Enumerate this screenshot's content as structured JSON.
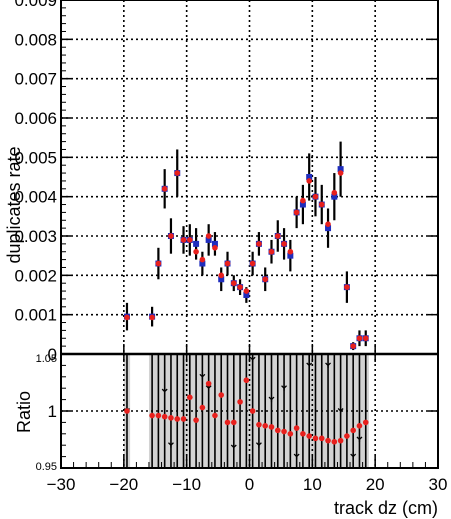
{
  "chart_data": [
    {
      "panel": "upper",
      "type": "scatter",
      "title": "",
      "xlabel": "",
      "ylabel": "duplicates rate",
      "xlim": [
        -30,
        30
      ],
      "ylim": [
        0,
        0.009
      ],
      "grid": true,
      "yticks": [
        "0",
        "0.001",
        "0.002",
        "0.003",
        "0.004",
        "0.005",
        "0.006",
        "0.007",
        "0.008",
        "0.009"
      ],
      "series": [
        {
          "marker": "blue-square",
          "color": "#1f2dbd",
          "points": [
            {
              "x": -19.5,
              "y": 0.00095,
              "err": 0.00035
            },
            {
              "x": -15.5,
              "y": 0.00095,
              "err": 0.00025
            },
            {
              "x": -14.5,
              "y": 0.0023,
              "err": 0.0004
            },
            {
              "x": -13.5,
              "y": 0.0042,
              "err": 0.0005
            },
            {
              "x": -12.5,
              "y": 0.003,
              "err": 0.00045
            },
            {
              "x": -11.5,
              "y": 0.0046,
              "err": 0.0006
            },
            {
              "x": -10.5,
              "y": 0.0029,
              "err": 0.00035
            },
            {
              "x": -9.5,
              "y": 0.0029,
              "err": 0.0004
            },
            {
              "x": -8.5,
              "y": 0.0028,
              "err": 0.0004
            },
            {
              "x": -7.5,
              "y": 0.0023,
              "err": 0.0003
            },
            {
              "x": -6.5,
              "y": 0.0029,
              "err": 0.0004
            },
            {
              "x": -5.5,
              "y": 0.0028,
              "err": 0.0003
            },
            {
              "x": -4.5,
              "y": 0.0019,
              "err": 0.0003
            },
            {
              "x": -3.5,
              "y": 0.0023,
              "err": 0.0003
            },
            {
              "x": -2.5,
              "y": 0.0018,
              "err": 0.0002
            },
            {
              "x": -1.5,
              "y": 0.0017,
              "err": 0.0002
            },
            {
              "x": -0.5,
              "y": 0.0015,
              "err": 0.0002
            },
            {
              "x": 0.5,
              "y": 0.0023,
              "err": 0.0003
            },
            {
              "x": 1.5,
              "y": 0.0028,
              "err": 0.0003
            },
            {
              "x": 2.5,
              "y": 0.0019,
              "err": 0.0003
            },
            {
              "x": 3.5,
              "y": 0.0026,
              "err": 0.0003
            },
            {
              "x": 4.5,
              "y": 0.003,
              "err": 0.0004
            },
            {
              "x": 5.5,
              "y": 0.0028,
              "err": 0.0004
            },
            {
              "x": 6.5,
              "y": 0.0025,
              "err": 0.0004
            },
            {
              "x": 7.5,
              "y": 0.0036,
              "err": 0.0004
            },
            {
              "x": 8.5,
              "y": 0.0038,
              "err": 0.0005
            },
            {
              "x": 9.5,
              "y": 0.0045,
              "err": 0.0006
            },
            {
              "x": 10.5,
              "y": 0.004,
              "err": 0.0005
            },
            {
              "x": 11.5,
              "y": 0.0038,
              "err": 0.0005
            },
            {
              "x": 12.5,
              "y": 0.0032,
              "err": 0.0005
            },
            {
              "x": 13.5,
              "y": 0.004,
              "err": 0.0006
            },
            {
              "x": 14.5,
              "y": 0.0047,
              "err": 0.0007
            },
            {
              "x": 15.5,
              "y": 0.0017,
              "err": 0.0004
            },
            {
              "x": 16.5,
              "y": 0.0002,
              "err": 0.0001
            },
            {
              "x": 17.5,
              "y": 0.0004,
              "err": 0.0002
            },
            {
              "x": 18.5,
              "y": 0.0004,
              "err": 0.0002
            }
          ]
        },
        {
          "marker": "red-circle",
          "color": "#e8201d",
          "points": [
            {
              "x": -19.5,
              "y": 0.00093
            },
            {
              "x": -15.5,
              "y": 0.00093
            },
            {
              "x": -14.5,
              "y": 0.0023
            },
            {
              "x": -13.5,
              "y": 0.0042
            },
            {
              "x": -12.5,
              "y": 0.003
            },
            {
              "x": -11.5,
              "y": 0.0046
            },
            {
              "x": -10.5,
              "y": 0.0029
            },
            {
              "x": -9.5,
              "y": 0.0029
            },
            {
              "x": -8.5,
              "y": 0.0026
            },
            {
              "x": -7.5,
              "y": 0.0024
            },
            {
              "x": -6.5,
              "y": 0.003
            },
            {
              "x": -5.5,
              "y": 0.0027
            },
            {
              "x": -4.5,
              "y": 0.002
            },
            {
              "x": -3.5,
              "y": 0.0023
            },
            {
              "x": -2.5,
              "y": 0.0018
            },
            {
              "x": -1.5,
              "y": 0.0017
            },
            {
              "x": -0.5,
              "y": 0.0016
            },
            {
              "x": 0.5,
              "y": 0.0023
            },
            {
              "x": 1.5,
              "y": 0.0028
            },
            {
              "x": 2.5,
              "y": 0.0019
            },
            {
              "x": 3.5,
              "y": 0.0026
            },
            {
              "x": 4.5,
              "y": 0.003
            },
            {
              "x": 5.5,
              "y": 0.0028
            },
            {
              "x": 6.5,
              "y": 0.0026
            },
            {
              "x": 7.5,
              "y": 0.0036
            },
            {
              "x": 8.5,
              "y": 0.0039
            },
            {
              "x": 9.5,
              "y": 0.0044
            },
            {
              "x": 10.5,
              "y": 0.004
            },
            {
              "x": 11.5,
              "y": 0.0038
            },
            {
              "x": 12.5,
              "y": 0.0033
            },
            {
              "x": 13.5,
              "y": 0.0041
            },
            {
              "x": 14.5,
              "y": 0.0046
            },
            {
              "x": 15.5,
              "y": 0.0017
            },
            {
              "x": 16.5,
              "y": 0.0002
            },
            {
              "x": 17.5,
              "y": 0.0004
            },
            {
              "x": 18.5,
              "y": 0.0004
            }
          ]
        }
      ]
    },
    {
      "panel": "lower",
      "type": "scatter",
      "xlabel": "track dz (cm)",
      "ylabel": "Ratio",
      "xlim": [
        -30,
        30
      ],
      "ylim": [
        0.95,
        1.05
      ],
      "xticks": [
        "−30",
        "−20",
        "−10",
        "0",
        "10",
        "20",
        "30"
      ],
      "yticks": [
        "0.95",
        "1",
        "1.05"
      ],
      "grid": true,
      "band_color": "#d3d3d3",
      "bands": [
        {
          "x0": -20,
          "x1": -19
        },
        {
          "x0": -16,
          "x1": 19
        }
      ],
      "series": [
        {
          "marker": "red-circle",
          "color": "#e8201d",
          "points": [
            {
              "x": -19.5,
              "y": 1.0
            },
            {
              "x": -15.5,
              "y": 0.996
            },
            {
              "x": -14.5,
              "y": 0.996
            },
            {
              "x": -13.5,
              "y": 0.995
            },
            {
              "x": -12.5,
              "y": 0.994
            },
            {
              "x": -11.5,
              "y": 0.993
            },
            {
              "x": -10.5,
              "y": 0.993
            },
            {
              "x": -9.5,
              "y": 1.012
            },
            {
              "x": -8.5,
              "y": 0.992
            },
            {
              "x": -7.5,
              "y": 1.003
            },
            {
              "x": -6.5,
              "y": 1.024
            },
            {
              "x": -5.5,
              "y": 0.996
            },
            {
              "x": -4.5,
              "y": 1.014
            },
            {
              "x": -3.5,
              "y": 0.99
            },
            {
              "x": -2.5,
              "y": 0.99
            },
            {
              "x": -1.5,
              "y": 1.008
            },
            {
              "x": -0.5,
              "y": 1.027
            },
            {
              "x": 0.5,
              "y": 1.0
            },
            {
              "x": 1.5,
              "y": 0.988
            },
            {
              "x": 2.5,
              "y": 0.987
            },
            {
              "x": 3.5,
              "y": 0.986
            },
            {
              "x": 4.5,
              "y": 0.983
            },
            {
              "x": 5.5,
              "y": 0.982
            },
            {
              "x": 6.5,
              "y": 0.98
            },
            {
              "x": 7.5,
              "y": 0.985
            },
            {
              "x": 8.5,
              "y": 0.98
            },
            {
              "x": 9.5,
              "y": 0.978
            },
            {
              "x": 10.5,
              "y": 0.976
            },
            {
              "x": 11.5,
              "y": 0.976
            },
            {
              "x": 12.5,
              "y": 0.974
            },
            {
              "x": 13.5,
              "y": 0.973
            },
            {
              "x": 14.5,
              "y": 0.974
            },
            {
              "x": 15.5,
              "y": 0.978
            },
            {
              "x": 16.5,
              "y": 0.983
            },
            {
              "x": 17.5,
              "y": 0.987
            },
            {
              "x": 18.5,
              "y": 0.99
            }
          ]
        }
      ],
      "outliers": [
        {
          "x": -19.5,
          "y": 1.0
        },
        {
          "x": -13.5,
          "y": 1.017
        },
        {
          "x": -12.5,
          "y": 0.97
        },
        {
          "x": -9.5,
          "y": 1.01
        },
        {
          "x": -7.5,
          "y": 1.03
        },
        {
          "x": -6.5,
          "y": 1.02
        },
        {
          "x": -2.5,
          "y": 0.968
        },
        {
          "x": 0.5,
          "y": 1.045
        },
        {
          "x": 1.5,
          "y": 0.97
        },
        {
          "x": 3.5,
          "y": 1.01
        },
        {
          "x": 5.5,
          "y": 1.02
        },
        {
          "x": 7.5,
          "y": 0.96
        },
        {
          "x": 9.5,
          "y": 1.04
        },
        {
          "x": 12.5,
          "y": 1.04
        },
        {
          "x": 14.5,
          "y": 1.0
        },
        {
          "x": 16.5,
          "y": 0.96
        },
        {
          "x": 17.5,
          "y": 0.975
        }
      ]
    }
  ]
}
